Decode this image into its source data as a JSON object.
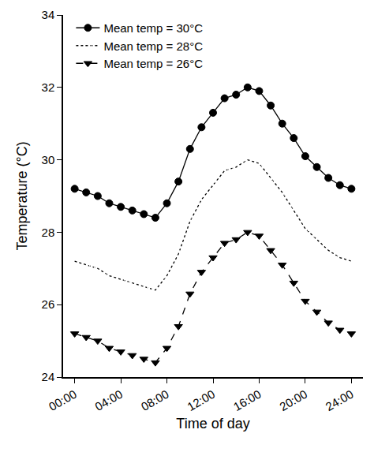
{
  "chart_data": {
    "type": "line",
    "x_label": "Time of day",
    "y_label": "Temperature (°C)",
    "x": [
      0,
      1,
      2,
      3,
      4,
      5,
      6,
      7,
      8,
      9,
      10,
      11,
      12,
      13,
      14,
      15,
      16,
      17,
      18,
      19,
      20,
      21,
      22,
      23,
      24
    ],
    "xlim": [
      -1,
      25
    ],
    "xticks": [
      {
        "value": 0,
        "label": "00:00"
      },
      {
        "value": 4,
        "label": "04:00"
      },
      {
        "value": 8,
        "label": "08:00"
      },
      {
        "value": 12,
        "label": "12:00"
      },
      {
        "value": 16,
        "label": "16:00"
      },
      {
        "value": 20,
        "label": "20:00"
      },
      {
        "value": 24,
        "label": "24:00"
      }
    ],
    "ylim": [
      24,
      34
    ],
    "yticks": [
      24,
      26,
      28,
      30,
      32,
      34
    ],
    "grid": false,
    "legend": "top-left",
    "series": [
      {
        "name": "Mean temp = 30°C",
        "color": "#000000",
        "marker": "circle",
        "line_style": "solid",
        "values": [
          29.2,
          29.1,
          29.0,
          28.8,
          28.7,
          28.6,
          28.5,
          28.4,
          28.8,
          29.4,
          30.3,
          30.9,
          31.3,
          31.7,
          31.8,
          32.0,
          31.9,
          31.5,
          31.0,
          30.6,
          30.1,
          29.8,
          29.5,
          29.3,
          29.2
        ]
      },
      {
        "name": "Mean temp = 28°C",
        "color": "#000000",
        "marker": "circle-open",
        "line_style": "dot",
        "values": [
          27.2,
          27.1,
          27.0,
          26.8,
          26.7,
          26.6,
          26.5,
          26.4,
          26.8,
          27.4,
          28.3,
          28.9,
          29.3,
          29.7,
          29.8,
          30.0,
          29.9,
          29.5,
          29.1,
          28.6,
          28.1,
          27.8,
          27.5,
          27.3,
          27.2
        ]
      },
      {
        "name": "Mean temp = 26°C",
        "color": "#000000",
        "marker": "triangle-down",
        "line_style": "dash",
        "values": [
          25.2,
          25.1,
          25.0,
          24.8,
          24.7,
          24.6,
          24.5,
          24.4,
          24.8,
          25.4,
          26.3,
          26.9,
          27.3,
          27.7,
          27.8,
          28.0,
          27.9,
          27.5,
          27.1,
          26.6,
          26.1,
          25.8,
          25.5,
          25.3,
          25.2
        ]
      }
    ]
  }
}
